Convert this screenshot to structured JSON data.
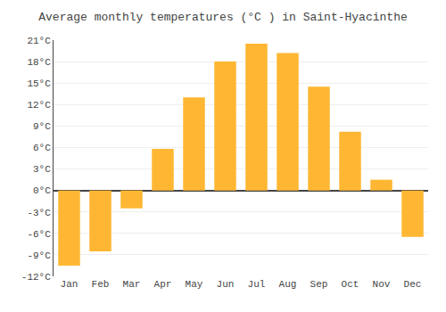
{
  "chart_data": {
    "type": "bar",
    "title": "Average monthly temperatures (°C ) in Saint-Hyacinthe",
    "categories": [
      "Jan",
      "Feb",
      "Mar",
      "Apr",
      "May",
      "Jun",
      "Jul",
      "Aug",
      "Sep",
      "Oct",
      "Nov",
      "Dec"
    ],
    "values": [
      -10.5,
      -8.5,
      -2.5,
      5.8,
      13.0,
      18.0,
      20.5,
      19.2,
      14.5,
      8.2,
      1.5,
      -6.5
    ],
    "color": "#FFB733",
    "ylim": [
      -12,
      21
    ],
    "yticks": [
      {
        "value": -12,
        "label": "-12°C"
      },
      {
        "value": -9,
        "label": "-9°C"
      },
      {
        "value": -6,
        "label": "-6°C"
      },
      {
        "value": -3,
        "label": "-3°C"
      },
      {
        "value": 0,
        "label": "0°C"
      },
      {
        "value": 3,
        "label": "3°C"
      },
      {
        "value": 6,
        "label": "6°C"
      },
      {
        "value": 9,
        "label": "9°C"
      },
      {
        "value": 12,
        "label": "12°C"
      },
      {
        "value": 15,
        "label": "15°C"
      },
      {
        "value": 18,
        "label": "18°C"
      },
      {
        "value": 21,
        "label": "21°C"
      }
    ],
    "grid": true
  }
}
